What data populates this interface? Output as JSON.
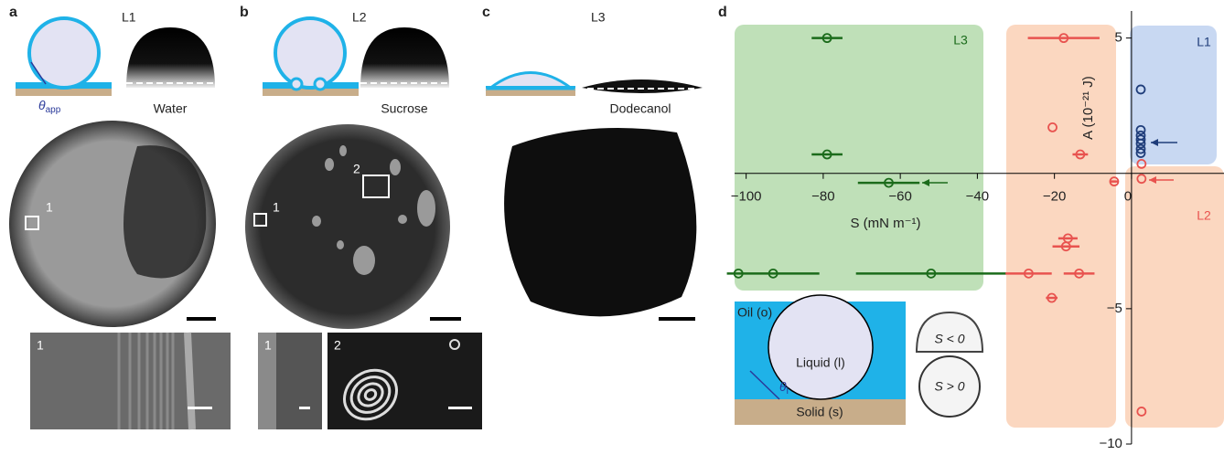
{
  "panels": {
    "a": {
      "label": "a",
      "liquid": "L1",
      "angle": {
        "symbol": "θ",
        "subscript": "app"
      },
      "drop": "Water",
      "region": "1",
      "inset": "1"
    },
    "b": {
      "label": "b",
      "liquid": "L2",
      "drop": "Sucrose",
      "regions": [
        "1",
        "2"
      ],
      "insets": [
        "1",
        "2"
      ]
    },
    "c": {
      "label": "c",
      "liquid": "L3",
      "drop": "Dodecanol"
    },
    "d": {
      "label": "d",
      "inset": {
        "oil": "Oil (o)",
        "liquid": "Liquid (l)",
        "angle": {
          "symbol": "θ",
          "subscript": "l"
        },
        "solid": "Solid (s)",
        "negative": "S < 0",
        "positive": "S > 0"
      }
    }
  },
  "chart_data": {
    "type": "scatter",
    "x_label": "S (mN m⁻¹)",
    "y_label": "A (10⁻²¹ J)",
    "xlim": [
      -103,
      24
    ],
    "ylim": [
      -10,
      6
    ],
    "xticks": [
      {
        "value": -100,
        "label": "−100"
      },
      {
        "value": -80,
        "label": "−80"
      },
      {
        "value": -60,
        "label": "−60"
      },
      {
        "value": -40,
        "label": "−40"
      },
      {
        "value": -20,
        "label": "−20"
      },
      0
    ],
    "yticks": [
      {
        "value": -10,
        "label": "−10"
      },
      {
        "value": -5,
        "label": "−5"
      },
      5
    ],
    "series": [
      {
        "name": "L3",
        "color": "#1b6b1b",
        "x": [
          -79,
          -79,
          -63,
          -102,
          -93,
          -52
        ],
        "y": [
          5,
          0.7,
          -0.35,
          -3.7,
          -3.7,
          -3.7
        ],
        "xerr": [
          4,
          4,
          8,
          null,
          12,
          19.5
        ]
      },
      {
        "name": "L2",
        "color": "#e8534f",
        "x": [
          -17.6,
          -20.5,
          -13.3,
          -4.5,
          2.6,
          2.6,
          -16.5,
          -17,
          -26.7,
          -13.6,
          -20.7,
          2.6
        ],
        "y": [
          5,
          1.7,
          0.7,
          -0.3,
          0.35,
          -0.2,
          -2.4,
          -2.7,
          -3.7,
          -3.7,
          -4.6,
          -8.8
        ],
        "xerr": [
          9.3,
          null,
          2,
          1,
          null,
          null,
          2.5,
          3.5,
          6,
          4,
          1.5,
          null
        ]
      },
      {
        "name": "L1",
        "color": "#1f3d7a",
        "x": [
          2.4,
          2.4,
          2.4,
          2.4,
          2.4,
          2.4,
          2.4
        ],
        "y": [
          3.1,
          1.6,
          1.4,
          1.25,
          1.1,
          0.9,
          0.75
        ],
        "xerr": [
          null,
          null,
          null,
          null,
          null,
          null,
          null
        ]
      }
    ]
  }
}
